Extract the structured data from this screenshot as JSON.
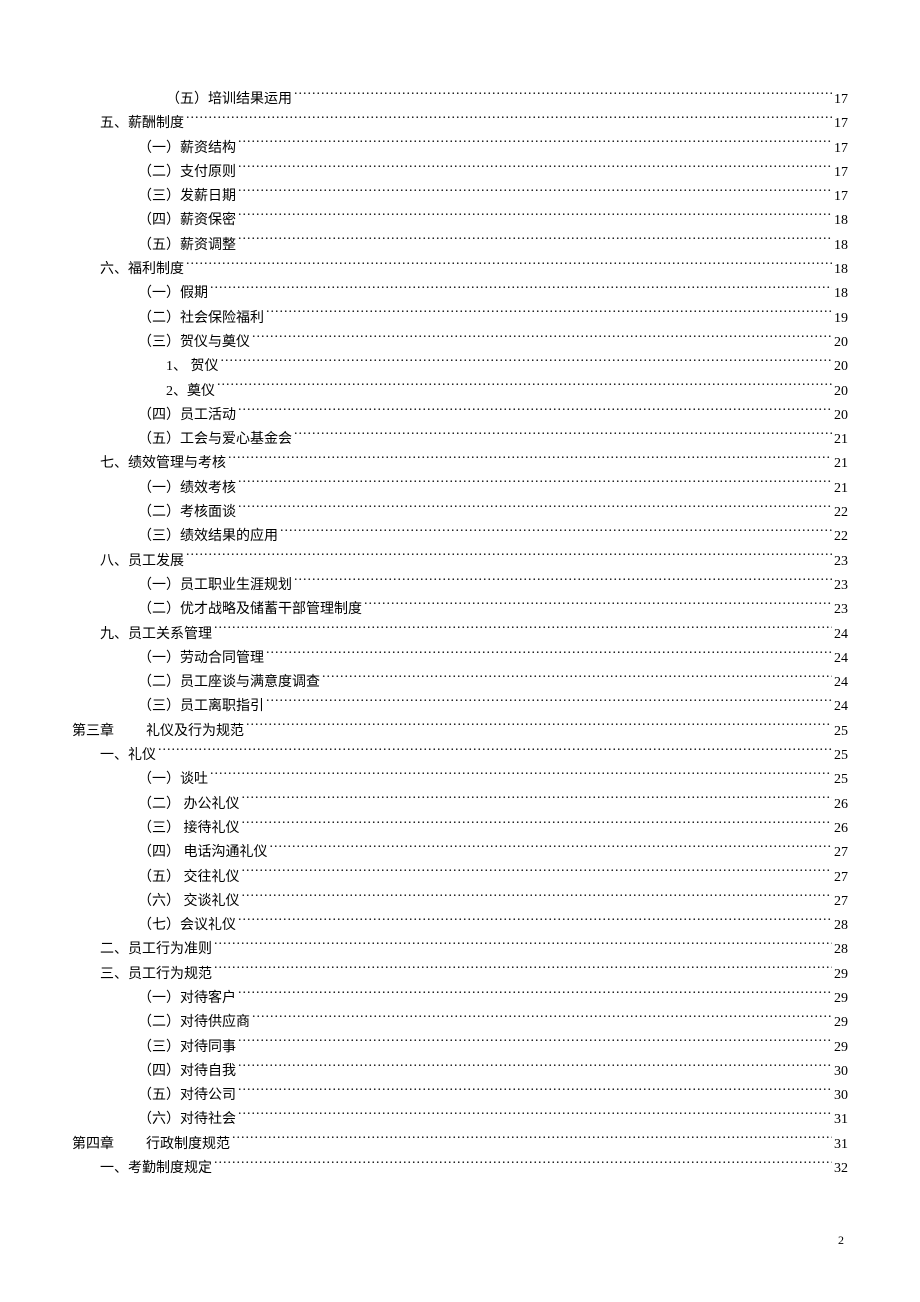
{
  "entries": [
    {
      "indent": 3,
      "label": "（五）培训结果运用",
      "page": "17"
    },
    {
      "indent": 1,
      "label": "五、薪酬制度",
      "page": "17"
    },
    {
      "indent": 2,
      "label": "（一）薪资结构",
      "page": "17"
    },
    {
      "indent": 2,
      "label": "（二）支付原则",
      "page": "17"
    },
    {
      "indent": 2,
      "label": "（三）发薪日期",
      "page": "17"
    },
    {
      "indent": 2,
      "label": "（四）薪资保密",
      "page": "18"
    },
    {
      "indent": 2,
      "label": "（五）薪资调整",
      "page": "18"
    },
    {
      "indent": 1,
      "label": "六、福利制度",
      "page": "18"
    },
    {
      "indent": 2,
      "label": "（一）假期",
      "page": "18"
    },
    {
      "indent": 2,
      "label": "（二）社会保险福利",
      "page": "19"
    },
    {
      "indent": 2,
      "label": "（三）贺仪与奠仪",
      "page": "20"
    },
    {
      "indent": 3,
      "label": "1、 贺仪",
      "page": "20"
    },
    {
      "indent": 3,
      "label": "2、奠仪",
      "page": "20"
    },
    {
      "indent": 2,
      "label": "（四）员工活动",
      "page": "20"
    },
    {
      "indent": 2,
      "label": "（五）工会与爱心基金会",
      "page": "21"
    },
    {
      "indent": 1,
      "label": "七、绩效管理与考核",
      "page": "21"
    },
    {
      "indent": 2,
      "label": "（一）绩效考核",
      "page": "21"
    },
    {
      "indent": 2,
      "label": "（二）考核面谈",
      "page": "22"
    },
    {
      "indent": 2,
      "label": "（三）绩效结果的应用",
      "page": "22"
    },
    {
      "indent": 1,
      "label": "八、员工发展",
      "page": "23"
    },
    {
      "indent": 2,
      "label": "（一）员工职业生涯规划",
      "page": "23"
    },
    {
      "indent": 2,
      "label": "（二）优才战略及储蓄干部管理制度",
      "page": "23"
    },
    {
      "indent": 1,
      "label": "九、员工关系管理",
      "page": "24"
    },
    {
      "indent": 2,
      "label": "（一）劳动合同管理",
      "page": "24"
    },
    {
      "indent": 2,
      "label": "（二）员工座谈与满意度调查",
      "page": "24"
    },
    {
      "indent": 2,
      "label": "（三）员工离职指引",
      "page": "24"
    },
    {
      "indent": 0,
      "is_chapter": true,
      "prefix": "第三章",
      "label": "礼仪及行为规范",
      "page": "25"
    },
    {
      "indent": 1,
      "label": "一、礼仪",
      "page": "25"
    },
    {
      "indent": 2,
      "label": "（一）谈吐",
      "page": "25"
    },
    {
      "indent": 2,
      "label": "（二） 办公礼仪",
      "page": "26"
    },
    {
      "indent": 2,
      "label": "（三） 接待礼仪",
      "page": "26"
    },
    {
      "indent": 2,
      "label": "（四） 电话沟通礼仪",
      "page": "27"
    },
    {
      "indent": 2,
      "label": "（五） 交往礼仪",
      "page": "27"
    },
    {
      "indent": 2,
      "label": "（六） 交谈礼仪",
      "page": "27"
    },
    {
      "indent": 2,
      "label": "（七）会议礼仪",
      "page": "28"
    },
    {
      "indent": 1,
      "label": "二、员工行为准则",
      "page": "28"
    },
    {
      "indent": 1,
      "label": "三、员工行为规范",
      "page": "29"
    },
    {
      "indent": 2,
      "label": "（一）对待客户",
      "page": "29"
    },
    {
      "indent": 2,
      "label": "（二）对待供应商",
      "page": "29"
    },
    {
      "indent": 2,
      "label": "（三）对待同事",
      "page": "29"
    },
    {
      "indent": 2,
      "label": "（四）对待自我",
      "page": "30"
    },
    {
      "indent": 2,
      "label": "（五）对待公司",
      "page": "30"
    },
    {
      "indent": 2,
      "label": "（六）对待社会",
      "page": "31"
    },
    {
      "indent": 0,
      "is_chapter": true,
      "prefix": "第四章",
      "label": "行政制度规范",
      "page": "31"
    },
    {
      "indent": 1,
      "label": "一、考勤制度规定",
      "page": "32"
    }
  ],
  "pageNumber": "2"
}
